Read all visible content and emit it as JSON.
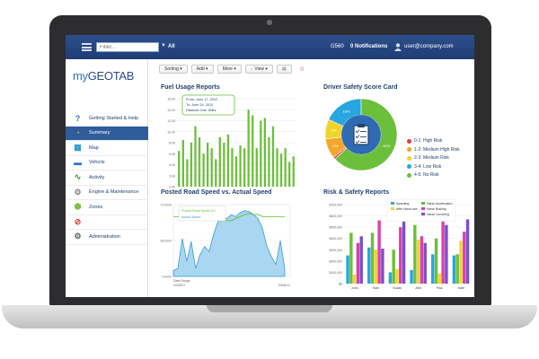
{
  "header": {
    "filter_placeholder": "Filter...",
    "filter_scope": "All",
    "device": "G560",
    "notifications": "0 Notifications",
    "user": "user@company.com"
  },
  "logo": {
    "prefix": "my",
    "brand": "GEOTAB"
  },
  "sidebar": {
    "items": [
      {
        "label": "Getting Started & Help",
        "icon": "help-icon"
      },
      {
        "label": "Summary",
        "icon": "pie-chart-icon"
      },
      {
        "label": "Map",
        "icon": "map-icon"
      },
      {
        "label": "Vehicle",
        "icon": "truck-icon"
      },
      {
        "label": "Activity",
        "icon": "activity-icon"
      },
      {
        "label": "Engine & Maintenance",
        "icon": "engine-icon"
      },
      {
        "label": "Zones",
        "icon": "zones-icon"
      },
      {
        "label": "",
        "icon": "rules-icon"
      },
      {
        "label": "Administration",
        "icon": "gear-icon"
      }
    ]
  },
  "toolbar": {
    "sorting": "Sorting",
    "add": "Add",
    "more": "More",
    "view": "View"
  },
  "fuel": {
    "title": "Fuel Usage Reports",
    "tooltip_from": "From: June 17, 2012",
    "tooltip_to": "To: June 24, 2012",
    "tooltip_unit": "Distance Unit: Miles"
  },
  "safety": {
    "title": "Driver Safety Score Card",
    "legend": [
      "0-1: High Risk",
      "1-2: Medium High Risk",
      "2-3: Medium Risk",
      "3-4: Low Risk",
      "4-5: No Risk"
    ]
  },
  "speed": {
    "title": "Posted Road Speed vs. Actual Speed",
    "legend_posted": "Posted Road Speed (Ki...",
    "legend_actual": "Actual Speed",
    "x_label": "Date Range",
    "x_start": "00/06/17",
    "x_end": "00/06/11"
  },
  "risk": {
    "title": "Risk & Safety Reports"
  },
  "chart_data": [
    {
      "type": "bar",
      "title": "Fuel Usage Reports",
      "ylabel": "",
      "ylim": [
        0,
        16
      ],
      "y_ticks": [
        "16.00",
        "14.00",
        "12.00",
        "10.00",
        "8.00",
        "6.00",
        "4.00",
        "2.00",
        "0.00"
      ],
      "values": [
        6.5,
        8.5,
        5,
        8,
        11,
        9,
        6,
        8,
        7,
        5,
        9,
        8,
        9.5,
        7,
        5.5,
        7.5,
        7,
        14,
        13,
        7,
        12,
        12.5,
        9,
        11,
        7,
        6,
        7,
        4.5,
        5.5
      ],
      "color": "#6cbf3a"
    },
    {
      "type": "pie",
      "title": "Driver Safety Score Card",
      "categories": [
        "0-1: High Risk",
        "1-2: Medium High Risk",
        "2-3: Medium Risk",
        "3-4: Low Risk",
        "4-5: No Risk"
      ],
      "values": [
        1,
        9,
        9,
        18,
        63
      ],
      "labels": [
        "",
        "9%",
        "9%",
        "18%",
        "63%"
      ],
      "colors": [
        "#e63946",
        "#f4a62a",
        "#f1d42a",
        "#27a6e0",
        "#6cbf3a"
      ]
    },
    {
      "type": "area",
      "title": "Posted Road Speed vs. Actual Speed",
      "y_ticks": [
        "72 km/h",
        "36 km/h",
        "0 km/h"
      ],
      "ylim": [
        0,
        72
      ],
      "actual": [
        6,
        8,
        38,
        15,
        35,
        8,
        22,
        30,
        25,
        42,
        55,
        60,
        58,
        62,
        60,
        64,
        66,
        65,
        62,
        58,
        48,
        30,
        20,
        12,
        36,
        8
      ],
      "posted": [
        60,
        60,
        60,
        58,
        58,
        58,
        58,
        58,
        58,
        58,
        56,
        56,
        56,
        56,
        58,
        60,
        62,
        63,
        62,
        62,
        60,
        60,
        60,
        60,
        60,
        60
      ]
    },
    {
      "type": "bar",
      "title": "Risk & Safety Reports",
      "categories": [
        "John",
        "Sam",
        "Susan",
        "Alex",
        "Paul",
        "Matt"
      ],
      "y_ticks": [
        "$700,000",
        "$600,000",
        "$500,000",
        "$400,000",
        "$300,000",
        "$200,000",
        "$100,000",
        "$0"
      ],
      "ylim": [
        0,
        700000
      ],
      "series": [
        {
          "name": "Speeding",
          "color": "#27a6e0",
          "values": [
            250000,
            320000,
            100000,
            120000,
            260000,
            250000
          ]
        },
        {
          "name": "Harsh Acceleration",
          "color": "#6cbf3a",
          "values": [
            450000,
            450000,
            300000,
            520000,
            400000,
            260000
          ]
        },
        {
          "name": "After Hours use",
          "color": "#f1d42a",
          "values": [
            80000,
            300000,
            130000,
            390000,
            90000,
            380000
          ]
        },
        {
          "name": "Harsh Braking",
          "color": "#d93fb0",
          "values": [
            360000,
            560000,
            500000,
            420000,
            550000,
            460000
          ]
        },
        {
          "name": "Harsh Cornering",
          "color": "#7a4fc9",
          "values": [
            420000,
            310000,
            550000,
            360000,
            520000,
            570000
          ]
        }
      ]
    }
  ]
}
